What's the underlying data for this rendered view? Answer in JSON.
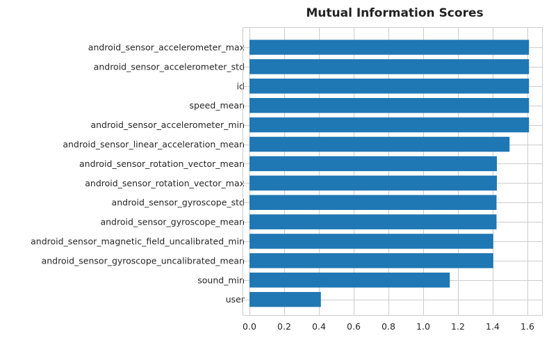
{
  "chart_data": {
    "type": "bar",
    "orientation": "horizontal",
    "title": "Mutual Information Scores",
    "xlabel": "",
    "ylabel": "",
    "xlim": [
      0,
      1.68
    ],
    "xticks": [
      0.0,
      0.2,
      0.4,
      0.6,
      0.8,
      1.0,
      1.2,
      1.4,
      1.6
    ],
    "xtick_labels": [
      "0.0",
      "0.2",
      "0.4",
      "0.6",
      "0.8",
      "1.0",
      "1.2",
      "1.4",
      "1.6"
    ],
    "grid": true,
    "bar_color": "#1f77b4",
    "grid_color": "#cccccc",
    "categories": [
      "android_sensor_accelerometer_max",
      "android_sensor_accelerometer_std",
      "id",
      "speed_mean",
      "android_sensor_accelerometer_min",
      "android_sensor_linear_acceleration_mean",
      "android_sensor_rotation_vector_mean",
      "android_sensor_rotation_vector_max",
      "android_sensor_gyroscope_std",
      "android_sensor_gyroscope_mean",
      "android_sensor_magnetic_field_uncalibrated_min",
      "android_sensor_gyroscope_uncalibrated_mean",
      "sound_min",
      "user"
    ],
    "values": [
      1.609,
      1.609,
      1.609,
      1.609,
      1.609,
      1.497,
      1.424,
      1.424,
      1.422,
      1.422,
      1.403,
      1.403,
      1.153,
      0.411
    ]
  }
}
